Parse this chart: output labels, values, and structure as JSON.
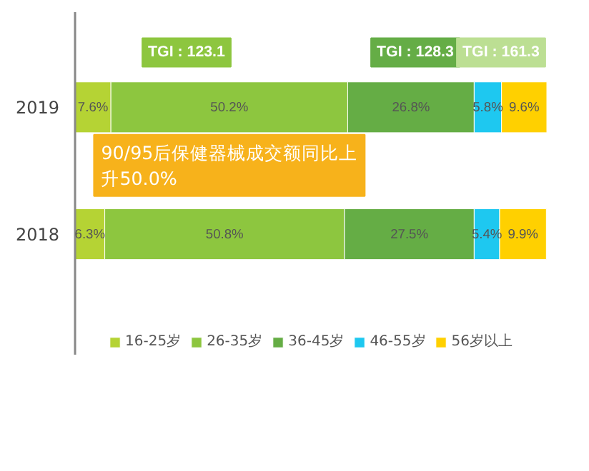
{
  "chart_data": {
    "type": "bar",
    "orientation": "horizontal",
    "stacked": true,
    "categories": [
      "2019",
      "2018"
    ],
    "series": [
      {
        "name": "16-25岁",
        "color": "#b5d334",
        "values": [
          7.6,
          6.3
        ],
        "value_labels": [
          "7.6%",
          "6.3%"
        ]
      },
      {
        "name": "26-35岁",
        "color": "#8dc63f",
        "values": [
          50.2,
          50.8
        ],
        "value_labels": [
          "50.2%",
          "50.8%"
        ]
      },
      {
        "name": "36-45岁",
        "color": "#65ad45",
        "values": [
          26.8,
          27.5
        ],
        "value_labels": [
          "26.8%",
          "27.5%"
        ]
      },
      {
        "name": "46-55岁",
        "color": "#1ec8f0",
        "values": [
          5.8,
          5.4
        ],
        "value_labels": [
          "5.8%",
          "5.4%"
        ]
      },
      {
        "name": "56岁以上",
        "color": "#ffd000",
        "values": [
          9.6,
          9.9
        ],
        "value_labels": [
          "9.6%",
          "9.9%"
        ]
      }
    ],
    "xlim": [
      0,
      100
    ],
    "tick_labels": "y",
    "grid": false,
    "legend": "bottom",
    "annotations": [
      "TGI : 123.1",
      "TGI : 128.3",
      "TGI : 161.3",
      "90/95后保健器械成交额同比上升50.0%"
    ]
  }
}
